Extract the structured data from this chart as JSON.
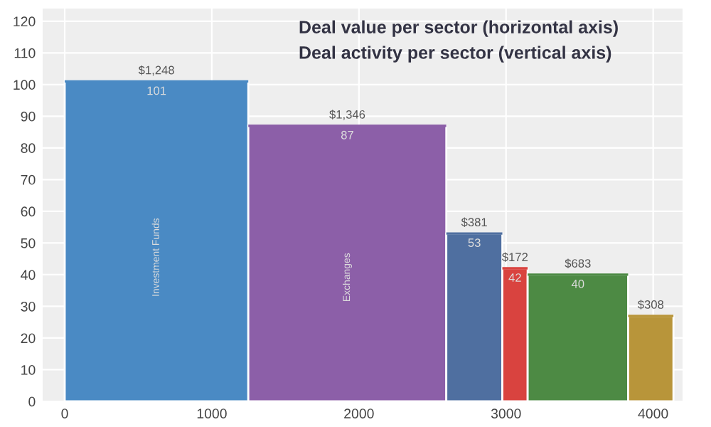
{
  "chart_data": {
    "type": "bar",
    "title": "Deal value per sector (horizontal axis)",
    "subtitle": "Deal activity per sector (vertical axis)",
    "x": [
      624,
      1921,
      2784.5,
      3061,
      3488.5,
      3984
    ],
    "values": [
      101,
      87,
      53,
      42,
      40,
      27
    ],
    "xerrors": [
      624,
      673,
      190.5,
      86,
      341.5,
      154
    ],
    "colors": [
      "#4a8ac4",
      "#8c5fa8",
      "#4f6fa0",
      "#d9433f",
      "#4d8a44",
      "#b8953a"
    ],
    "value_labels": [
      "101",
      "87",
      "53",
      "42",
      "40",
      null
    ],
    "annotations": [
      {
        "text": "$1,248",
        "x": 624,
        "y": 101
      },
      {
        "text": "$1,346",
        "x": 1921,
        "y": 87
      },
      {
        "text": "$381",
        "x": 2784.5,
        "y": 53
      },
      {
        "text": "$172",
        "x": 3061,
        "y": 42
      },
      {
        "text": "$683",
        "x": 3488.5,
        "y": 40
      },
      {
        "text": "$308",
        "x": 3984,
        "y": 27
      },
      "Investment Funds",
      "Exchanges"
    ],
    "xlim": [
      -150,
      4200
    ],
    "xticks": [
      0,
      1000,
      2000,
      3000,
      4000
    ],
    "ylim": [
      0,
      124
    ],
    "yticks": [
      0,
      10,
      20,
      30,
      40,
      50,
      60,
      70,
      80,
      90,
      100,
      110,
      120
    ],
    "grid": true
  }
}
